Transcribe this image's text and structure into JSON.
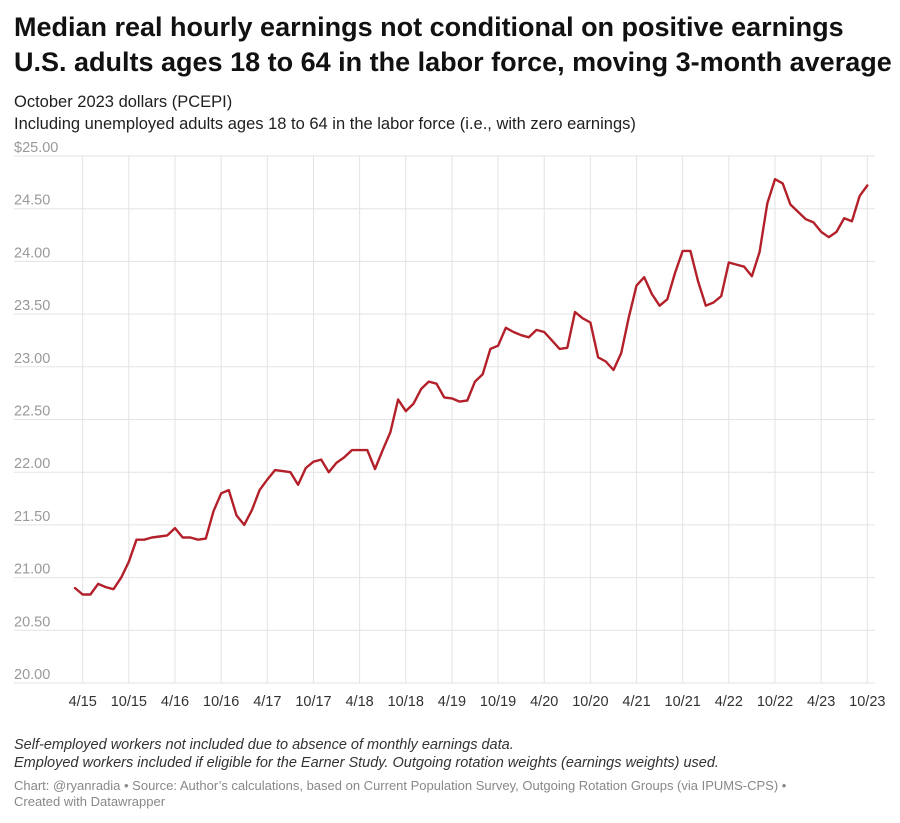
{
  "title_lines": [
    "Median real hourly earnings not conditional on positive earnings",
    "U.S. adults ages 18 to 64 in the labor force, moving 3-month average"
  ],
  "subtitle_lines": [
    "October 2023 dollars (PCEPI)",
    "Including unemployed adults ages 18 to 64 in the labor force (i.e., with zero earnings)"
  ],
  "notes": [
    "Self-employed workers not included due to absence of monthly earnings data.",
    "Employed workers included if eligible for the Earner Study. Outgoing rotation weights (earnings weights) used."
  ],
  "footer": [
    "Chart: @ryanradia • Source: Author’s calculations, based on Current Population Survey, Outgoing Rotation Groups (via IPUMS-CPS)  •",
    "Created with Datawrapper"
  ],
  "chart_data": {
    "type": "line",
    "line_color": "#b3202a",
    "grid": true,
    "ylim": [
      20.0,
      25.0
    ],
    "y_ticks": [
      {
        "value": 25.0,
        "label": "$25.00"
      },
      {
        "value": 24.5,
        "label": "24.50"
      },
      {
        "value": 24.0,
        "label": "24.00"
      },
      {
        "value": 23.5,
        "label": "23.50"
      },
      {
        "value": 23.0,
        "label": "23.00"
      },
      {
        "value": 22.5,
        "label": "22.50"
      },
      {
        "value": 22.0,
        "label": "22.00"
      },
      {
        "value": 21.5,
        "label": "21.50"
      },
      {
        "value": 21.0,
        "label": "21.00"
      },
      {
        "value": 20.5,
        "label": "20.50"
      },
      {
        "value": 20.0,
        "label": "20.00"
      }
    ],
    "x_ticks": [
      {
        "date": "2015-04",
        "label": "4/15"
      },
      {
        "date": "2015-10",
        "label": "10/15"
      },
      {
        "date": "2016-04",
        "label": "4/16"
      },
      {
        "date": "2016-10",
        "label": "10/16"
      },
      {
        "date": "2017-04",
        "label": "4/17"
      },
      {
        "date": "2017-10",
        "label": "10/17"
      },
      {
        "date": "2018-04",
        "label": "4/18"
      },
      {
        "date": "2018-10",
        "label": "10/18"
      },
      {
        "date": "2019-04",
        "label": "4/19"
      },
      {
        "date": "2019-10",
        "label": "10/19"
      },
      {
        "date": "2020-04",
        "label": "4/20"
      },
      {
        "date": "2020-10",
        "label": "10/20"
      },
      {
        "date": "2021-04",
        "label": "4/21"
      },
      {
        "date": "2021-10",
        "label": "10/21"
      },
      {
        "date": "2022-04",
        "label": "4/22"
      },
      {
        "date": "2022-10",
        "label": "10/22"
      },
      {
        "date": "2023-04",
        "label": "4/23"
      },
      {
        "date": "2023-10",
        "label": "10/23"
      }
    ],
    "points": [
      {
        "x": "2015-03",
        "y": 20.9
      },
      {
        "x": "2015-04",
        "y": 20.84
      },
      {
        "x": "2015-05",
        "y": 20.84
      },
      {
        "x": "2015-06",
        "y": 20.94
      },
      {
        "x": "2015-07",
        "y": 20.91
      },
      {
        "x": "2015-08",
        "y": 20.89
      },
      {
        "x": "2015-09",
        "y": 21.0
      },
      {
        "x": "2015-10",
        "y": 21.15
      },
      {
        "x": "2015-11",
        "y": 21.36
      },
      {
        "x": "2015-12",
        "y": 21.36
      },
      {
        "x": "2016-01",
        "y": 21.38
      },
      {
        "x": "2016-02",
        "y": 21.39
      },
      {
        "x": "2016-03",
        "y": 21.4
      },
      {
        "x": "2016-04",
        "y": 21.47
      },
      {
        "x": "2016-05",
        "y": 21.38
      },
      {
        "x": "2016-06",
        "y": 21.38
      },
      {
        "x": "2016-07",
        "y": 21.36
      },
      {
        "x": "2016-08",
        "y": 21.37
      },
      {
        "x": "2016-09",
        "y": 21.63
      },
      {
        "x": "2016-10",
        "y": 21.8
      },
      {
        "x": "2016-11",
        "y": 21.83
      },
      {
        "x": "2016-12",
        "y": 21.59
      },
      {
        "x": "2017-01",
        "y": 21.5
      },
      {
        "x": "2017-02",
        "y": 21.64
      },
      {
        "x": "2017-03",
        "y": 21.83
      },
      {
        "x": "2017-04",
        "y": 21.93
      },
      {
        "x": "2017-05",
        "y": 22.02
      },
      {
        "x": "2017-06",
        "y": 22.01
      },
      {
        "x": "2017-07",
        "y": 22.0
      },
      {
        "x": "2017-08",
        "y": 21.88
      },
      {
        "x": "2017-09",
        "y": 22.04
      },
      {
        "x": "2017-10",
        "y": 22.1
      },
      {
        "x": "2017-11",
        "y": 22.12
      },
      {
        "x": "2017-12",
        "y": 22.0
      },
      {
        "x": "2018-01",
        "y": 22.09
      },
      {
        "x": "2018-02",
        "y": 22.14
      },
      {
        "x": "2018-03",
        "y": 22.21
      },
      {
        "x": "2018-04",
        "y": 22.21
      },
      {
        "x": "2018-05",
        "y": 22.21
      },
      {
        "x": "2018-06",
        "y": 22.03
      },
      {
        "x": "2018-07",
        "y": 22.21
      },
      {
        "x": "2018-08",
        "y": 22.38
      },
      {
        "x": "2018-09",
        "y": 22.69
      },
      {
        "x": "2018-10",
        "y": 22.58
      },
      {
        "x": "2018-11",
        "y": 22.65
      },
      {
        "x": "2018-12",
        "y": 22.79
      },
      {
        "x": "2019-01",
        "y": 22.86
      },
      {
        "x": "2019-02",
        "y": 22.84
      },
      {
        "x": "2019-03",
        "y": 22.71
      },
      {
        "x": "2019-04",
        "y": 22.7
      },
      {
        "x": "2019-05",
        "y": 22.67
      },
      {
        "x": "2019-06",
        "y": 22.68
      },
      {
        "x": "2019-07",
        "y": 22.86
      },
      {
        "x": "2019-08",
        "y": 22.93
      },
      {
        "x": "2019-09",
        "y": 23.17
      },
      {
        "x": "2019-10",
        "y": 23.2
      },
      {
        "x": "2019-11",
        "y": 23.37
      },
      {
        "x": "2019-12",
        "y": 23.33
      },
      {
        "x": "2020-01",
        "y": 23.3
      },
      {
        "x": "2020-02",
        "y": 23.28
      },
      {
        "x": "2020-03",
        "y": 23.35
      },
      {
        "x": "2020-04",
        "y": 23.33
      },
      {
        "x": "2020-05",
        "y": 23.25
      },
      {
        "x": "2020-06",
        "y": 23.17
      },
      {
        "x": "2020-07",
        "y": 23.18
      },
      {
        "x": "2020-08",
        "y": 23.52
      },
      {
        "x": "2020-09",
        "y": 23.46
      },
      {
        "x": "2020-10",
        "y": 23.42
      },
      {
        "x": "2020-11",
        "y": 23.09
      },
      {
        "x": "2020-12",
        "y": 23.05
      },
      {
        "x": "2021-01",
        "y": 22.97
      },
      {
        "x": "2021-02",
        "y": 23.13
      },
      {
        "x": "2021-03",
        "y": 23.47
      },
      {
        "x": "2021-04",
        "y": 23.77
      },
      {
        "x": "2021-05",
        "y": 23.85
      },
      {
        "x": "2021-06",
        "y": 23.69
      },
      {
        "x": "2021-07",
        "y": 23.58
      },
      {
        "x": "2021-08",
        "y": 23.64
      },
      {
        "x": "2021-09",
        "y": 23.89
      },
      {
        "x": "2021-10",
        "y": 24.1
      },
      {
        "x": "2021-11",
        "y": 24.1
      },
      {
        "x": "2021-12",
        "y": 23.81
      },
      {
        "x": "2022-01",
        "y": 23.58
      },
      {
        "x": "2022-02",
        "y": 23.61
      },
      {
        "x": "2022-03",
        "y": 23.67
      },
      {
        "x": "2022-04",
        "y": 23.99
      },
      {
        "x": "2022-05",
        "y": 23.97
      },
      {
        "x": "2022-06",
        "y": 23.95
      },
      {
        "x": "2022-07",
        "y": 23.86
      },
      {
        "x": "2022-08",
        "y": 24.09
      },
      {
        "x": "2022-09",
        "y": 24.55
      },
      {
        "x": "2022-10",
        "y": 24.78
      },
      {
        "x": "2022-11",
        "y": 24.74
      },
      {
        "x": "2022-12",
        "y": 24.54
      },
      {
        "x": "2023-01",
        "y": 24.47
      },
      {
        "x": "2023-02",
        "y": 24.4
      },
      {
        "x": "2023-03",
        "y": 24.37
      },
      {
        "x": "2023-04",
        "y": 24.28
      },
      {
        "x": "2023-05",
        "y": 24.23
      },
      {
        "x": "2023-06",
        "y": 24.28
      },
      {
        "x": "2023-07",
        "y": 24.41
      },
      {
        "x": "2023-08",
        "y": 24.38
      },
      {
        "x": "2023-09",
        "y": 24.62
      },
      {
        "x": "2023-10",
        "y": 24.72
      }
    ]
  }
}
